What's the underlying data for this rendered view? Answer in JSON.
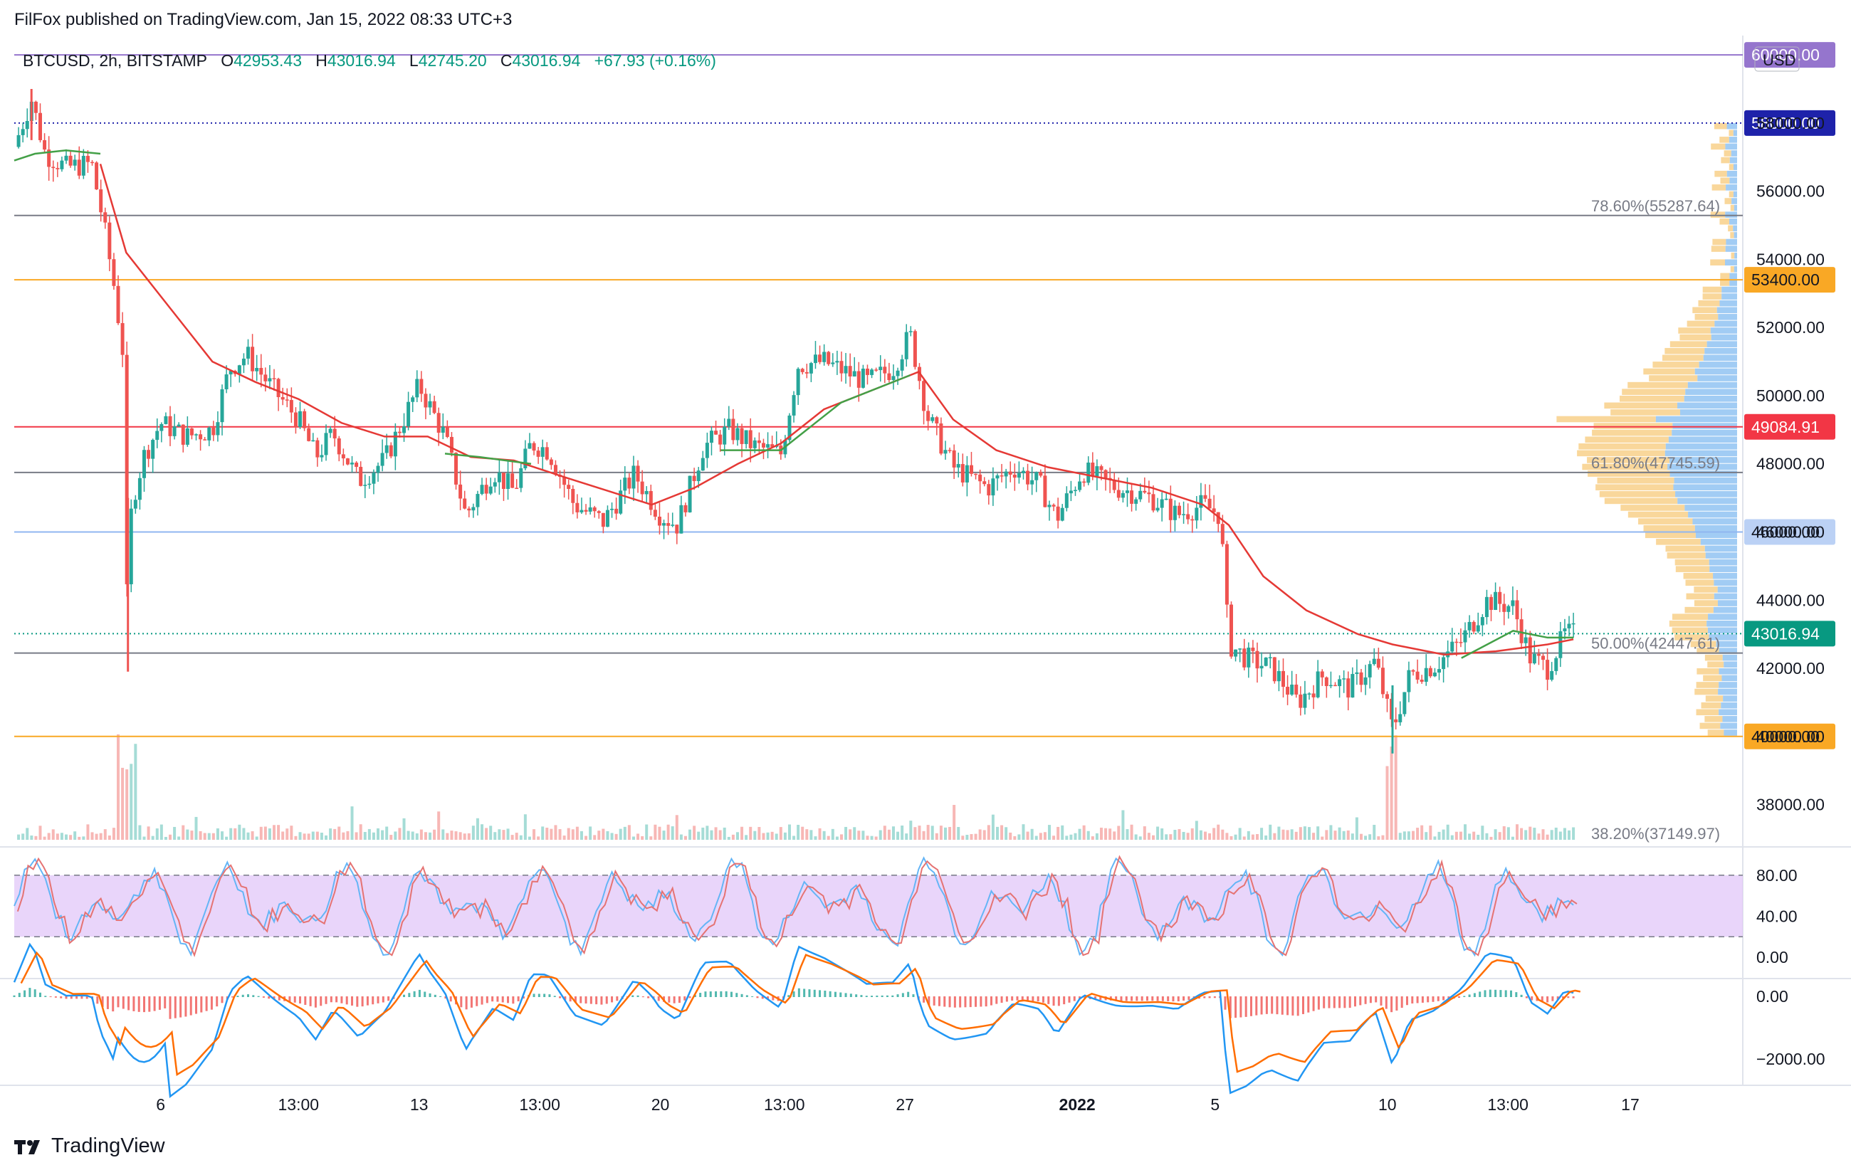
{
  "header": {
    "published": "FilFox published on TradingView.com, Jan 15, 2022 08:33 UTC+3"
  },
  "legend": {
    "symbol": "BTCUSD, 2h, BITSTAMP",
    "open_label": "O",
    "open": "42953.43",
    "high_label": "H",
    "high": "43016.94",
    "low_label": "L",
    "low": "42745.20",
    "close_label": "C",
    "close": "43016.94",
    "change": "+67.93 (+0.16%)"
  },
  "currency": "USD",
  "footer": {
    "brand": "TradingView"
  },
  "colors": {
    "up": "#26a69a",
    "down": "#ef5350",
    "ema": "#e53935",
    "sma": "#43a047",
    "fib": "#787b86",
    "orange": "#f9a825",
    "purple": "#7e57c2",
    "stoch_band": "#e1c7f8",
    "macd": "#2196f3",
    "signal": "#ff6d00"
  },
  "chart_data": {
    "type": "candlestick",
    "price_axis": {
      "range": [
        36800,
        60400
      ],
      "ticks": [
        {
          "value": 38000,
          "label": "38000.00"
        },
        {
          "value": 40000,
          "label": "40000.00"
        },
        {
          "value": 42000,
          "label": "42000.00"
        },
        {
          "value": 44000,
          "label": "44000.00"
        },
        {
          "value": 46000,
          "label": "46000.00"
        },
        {
          "value": 48000,
          "label": "48000.00"
        },
        {
          "value": 50000,
          "label": "50000.00"
        },
        {
          "value": 52000,
          "label": "52000.00"
        },
        {
          "value": 54000,
          "label": "54000.00"
        },
        {
          "value": 56000,
          "label": "56000.00"
        },
        {
          "value": 58000,
          "label": "58000.00"
        }
      ]
    },
    "time_axis": {
      "ticks": [
        {
          "t": 0.085,
          "label": "6",
          "bold": false
        },
        {
          "t": 0.165,
          "label": "13:00",
          "bold": false
        },
        {
          "t": 0.235,
          "label": "13",
          "bold": false
        },
        {
          "t": 0.305,
          "label": "13:00",
          "bold": false
        },
        {
          "t": 0.375,
          "label": "20",
          "bold": false
        },
        {
          "t": 0.447,
          "label": "13:00",
          "bold": false
        },
        {
          "t": 0.517,
          "label": "27",
          "bold": false
        },
        {
          "t": 0.617,
          "label": "2022",
          "bold": true
        },
        {
          "t": 0.697,
          "label": "5",
          "bold": false
        },
        {
          "t": 0.797,
          "label": "10",
          "bold": false
        },
        {
          "t": 0.867,
          "label": "13:00",
          "bold": false
        },
        {
          "t": 0.938,
          "label": "17",
          "bold": false
        }
      ]
    },
    "levels": [
      {
        "price": 60000,
        "label": "60000.00",
        "color": "#9575cd",
        "style": "solid",
        "badge": true
      },
      {
        "price": 58000,
        "label": "58000.00",
        "color": "#1e22aa",
        "style": "dotted",
        "badge": true
      },
      {
        "price": 53400,
        "label": "53400.00",
        "color": "#f9a825",
        "style": "solid",
        "badge": true
      },
      {
        "price": 49084.91,
        "label": "49084.91",
        "color": "#f23645",
        "style": "solid",
        "badge": true
      },
      {
        "price": 46000,
        "label": "46000.00",
        "color": "#90b6f0",
        "style": "solid",
        "badge": true
      },
      {
        "price": 43016.94,
        "label": "43016.94",
        "color": "#089981",
        "style": "dotted",
        "badge": true
      },
      {
        "price": 40000,
        "label": "40000.00",
        "color": "#f9a825",
        "style": "solid",
        "badge": true
      }
    ],
    "fibonacci": [
      {
        "price": 55287.64,
        "label": "78.60%(55287.64)"
      },
      {
        "price": 47745.59,
        "label": "61.80%(47745.59)"
      },
      {
        "price": 42447.61,
        "label": "50.00%(42447.61)"
      },
      {
        "price": 37149.97,
        "label": "38.20%(37149.97)"
      }
    ],
    "price_path": [
      [
        0.0,
        57300
      ],
      [
        0.01,
        58700
      ],
      [
        0.018,
        57100
      ],
      [
        0.03,
        56700
      ],
      [
        0.045,
        56800
      ],
      [
        0.052,
        55000
      ],
      [
        0.058,
        53200
      ],
      [
        0.063,
        51300
      ],
      [
        0.066,
        42200
      ],
      [
        0.068,
        46800
      ],
      [
        0.075,
        48200
      ],
      [
        0.085,
        49200
      ],
      [
        0.1,
        48800
      ],
      [
        0.115,
        49000
      ],
      [
        0.125,
        50800
      ],
      [
        0.135,
        51200
      ],
      [
        0.15,
        50200
      ],
      [
        0.165,
        49300
      ],
      [
        0.175,
        48200
      ],
      [
        0.185,
        48900
      ],
      [
        0.2,
        47500
      ],
      [
        0.215,
        48100
      ],
      [
        0.235,
        50300
      ],
      [
        0.25,
        48800
      ],
      [
        0.262,
        46500
      ],
      [
        0.278,
        47800
      ],
      [
        0.29,
        47200
      ],
      [
        0.3,
        48600
      ],
      [
        0.31,
        48400
      ],
      [
        0.325,
        46800
      ],
      [
        0.342,
        46300
      ],
      [
        0.36,
        47700
      ],
      [
        0.375,
        46500
      ],
      [
        0.385,
        46200
      ],
      [
        0.4,
        48500
      ],
      [
        0.415,
        49000
      ],
      [
        0.43,
        48500
      ],
      [
        0.445,
        48300
      ],
      [
        0.455,
        50900
      ],
      [
        0.47,
        51000
      ],
      [
        0.495,
        50400
      ],
      [
        0.51,
        50800
      ],
      [
        0.52,
        51800
      ],
      [
        0.53,
        49400
      ],
      [
        0.545,
        47900
      ],
      [
        0.565,
        47300
      ],
      [
        0.58,
        47900
      ],
      [
        0.595,
        47400
      ],
      [
        0.605,
        46400
      ],
      [
        0.62,
        47800
      ],
      [
        0.64,
        47300
      ],
      [
        0.66,
        47000
      ],
      [
        0.675,
        46500
      ],
      [
        0.69,
        46800
      ],
      [
        0.7,
        46500
      ],
      [
        0.705,
        42700
      ],
      [
        0.715,
        42300
      ],
      [
        0.73,
        42000
      ],
      [
        0.745,
        41000
      ],
      [
        0.76,
        41800
      ],
      [
        0.775,
        41400
      ],
      [
        0.79,
        42200
      ],
      [
        0.8,
        40200
      ],
      [
        0.81,
        41800
      ],
      [
        0.825,
        42100
      ],
      [
        0.84,
        42800
      ],
      [
        0.855,
        44000
      ],
      [
        0.87,
        43800
      ],
      [
        0.88,
        42300
      ],
      [
        0.89,
        42000
      ],
      [
        0.9,
        43000
      ],
      [
        0.905,
        43016
      ]
    ],
    "ema_path": [
      [
        0.05,
        56800
      ],
      [
        0.065,
        54200
      ],
      [
        0.09,
        52600
      ],
      [
        0.115,
        51000
      ],
      [
        0.14,
        50400
      ],
      [
        0.165,
        49900
      ],
      [
        0.19,
        49200
      ],
      [
        0.215,
        48800
      ],
      [
        0.24,
        48800
      ],
      [
        0.265,
        48200
      ],
      [
        0.29,
        48100
      ],
      [
        0.32,
        47600
      ],
      [
        0.345,
        47200
      ],
      [
        0.37,
        46800
      ],
      [
        0.395,
        47300
      ],
      [
        0.42,
        48000
      ],
      [
        0.445,
        48600
      ],
      [
        0.47,
        49600
      ],
      [
        0.5,
        50200
      ],
      [
        0.525,
        50700
      ],
      [
        0.545,
        49300
      ],
      [
        0.57,
        48400
      ],
      [
        0.6,
        47900
      ],
      [
        0.63,
        47600
      ],
      [
        0.66,
        47300
      ],
      [
        0.69,
        46800
      ],
      [
        0.705,
        46200
      ],
      [
        0.725,
        44700
      ],
      [
        0.75,
        43700
      ],
      [
        0.78,
        43000
      ],
      [
        0.8,
        42700
      ],
      [
        0.83,
        42400
      ],
      [
        0.86,
        42500
      ],
      [
        0.89,
        42700
      ],
      [
        0.905,
        42850
      ]
    ],
    "sma_path": [
      [
        0.0,
        56900
      ],
      [
        0.012,
        57100
      ],
      [
        0.03,
        57200
      ],
      [
        0.05,
        57100
      ],
      [
        0.25,
        48300
      ],
      [
        0.27,
        48200
      ],
      [
        0.3,
        48000
      ],
      [
        0.41,
        48400
      ],
      [
        0.445,
        48400
      ],
      [
        0.46,
        49000
      ],
      [
        0.48,
        49800
      ],
      [
        0.5,
        50200
      ],
      [
        0.52,
        50600
      ],
      [
        0.84,
        42300
      ],
      [
        0.855,
        42700
      ],
      [
        0.87,
        43100
      ],
      [
        0.89,
        42900
      ],
      [
        0.905,
        42900
      ]
    ],
    "stochastic": {
      "levels": [
        {
          "value": 80,
          "label": "80.00"
        },
        {
          "value": 40,
          "label": "40.00"
        },
        {
          "value": 0,
          "label": "0.00"
        }
      ],
      "upper_band": 80,
      "lower_band": 20
    },
    "macd": {
      "levels": [
        {
          "value": 0,
          "label": "0.00"
        },
        {
          "value": -2000,
          "label": "−2000.00"
        }
      ]
    },
    "volume_profile_range": [
      40000,
      58000
    ]
  }
}
